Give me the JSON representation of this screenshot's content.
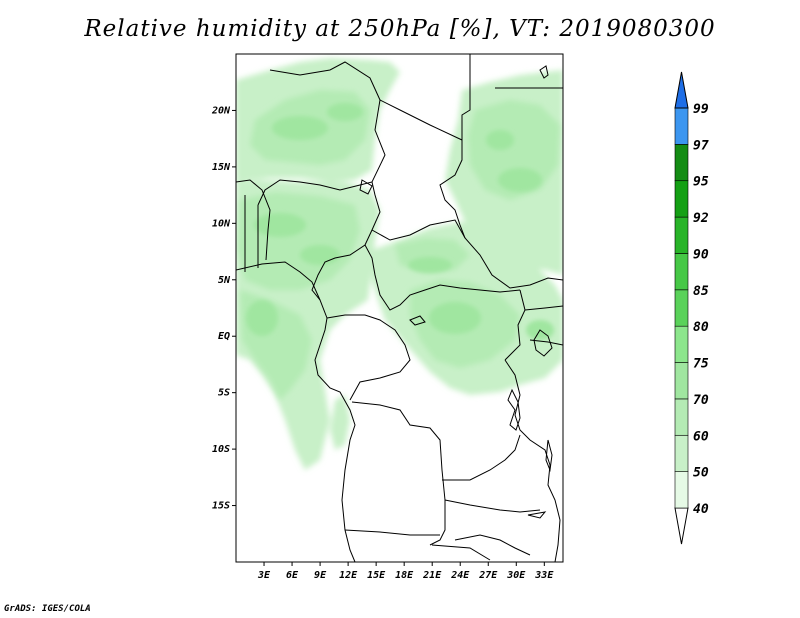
{
  "title": "Relative humidity at 250hPa [%], VT: 2019080300",
  "credit": "GrADS: IGES/COLA",
  "map": {
    "lon_range": [
      0,
      35
    ],
    "lat_range": [
      -20,
      25
    ],
    "lat_ticks": [
      {
        "value": 20,
        "label": "20N"
      },
      {
        "value": 15,
        "label": "15N"
      },
      {
        "value": 10,
        "label": "10N"
      },
      {
        "value": 5,
        "label": "5N"
      },
      {
        "value": 0,
        "label": "EQ"
      },
      {
        "value": -5,
        "label": "5S"
      },
      {
        "value": -10,
        "label": "10S"
      },
      {
        "value": -15,
        "label": "15S"
      }
    ],
    "lon_ticks": [
      {
        "value": 3,
        "label": "3E"
      },
      {
        "value": 6,
        "label": "6E"
      },
      {
        "value": 9,
        "label": "9E"
      },
      {
        "value": 12,
        "label": "12E"
      },
      {
        "value": 15,
        "label": "15E"
      },
      {
        "value": 18,
        "label": "18E"
      },
      {
        "value": 21,
        "label": "21E"
      },
      {
        "value": 24,
        "label": "24E"
      },
      {
        "value": 27,
        "label": "27E"
      },
      {
        "value": 30,
        "label": "30E"
      },
      {
        "value": 33,
        "label": "33E"
      }
    ]
  },
  "colorbar": {
    "levels": [
      {
        "label": "40",
        "color": "#e6fae6"
      },
      {
        "label": "50",
        "color": "#c8f0c8"
      },
      {
        "label": "60",
        "color": "#b4ebb4"
      },
      {
        "label": "70",
        "color": "#a0e6a0"
      },
      {
        "label": "75",
        "color": "#8ce68c"
      },
      {
        "label": "80",
        "color": "#5ad25a"
      },
      {
        "label": "85",
        "color": "#46c846"
      },
      {
        "label": "90",
        "color": "#28b428"
      },
      {
        "label": "92",
        "color": "#14a014"
      },
      {
        "label": "95",
        "color": "#148c14"
      },
      {
        "label": "97",
        "color": "#3c96f0"
      },
      {
        "label": "99",
        "color": "#1e6ee6"
      }
    ],
    "below_color": "#ffffff",
    "above_color": "#1e50c8"
  },
  "colors": {
    "field_light": "#c8f0c8",
    "field_mid": "#b4ebb4",
    "field_dark": "#a0e6a0",
    "border": "#000000"
  }
}
